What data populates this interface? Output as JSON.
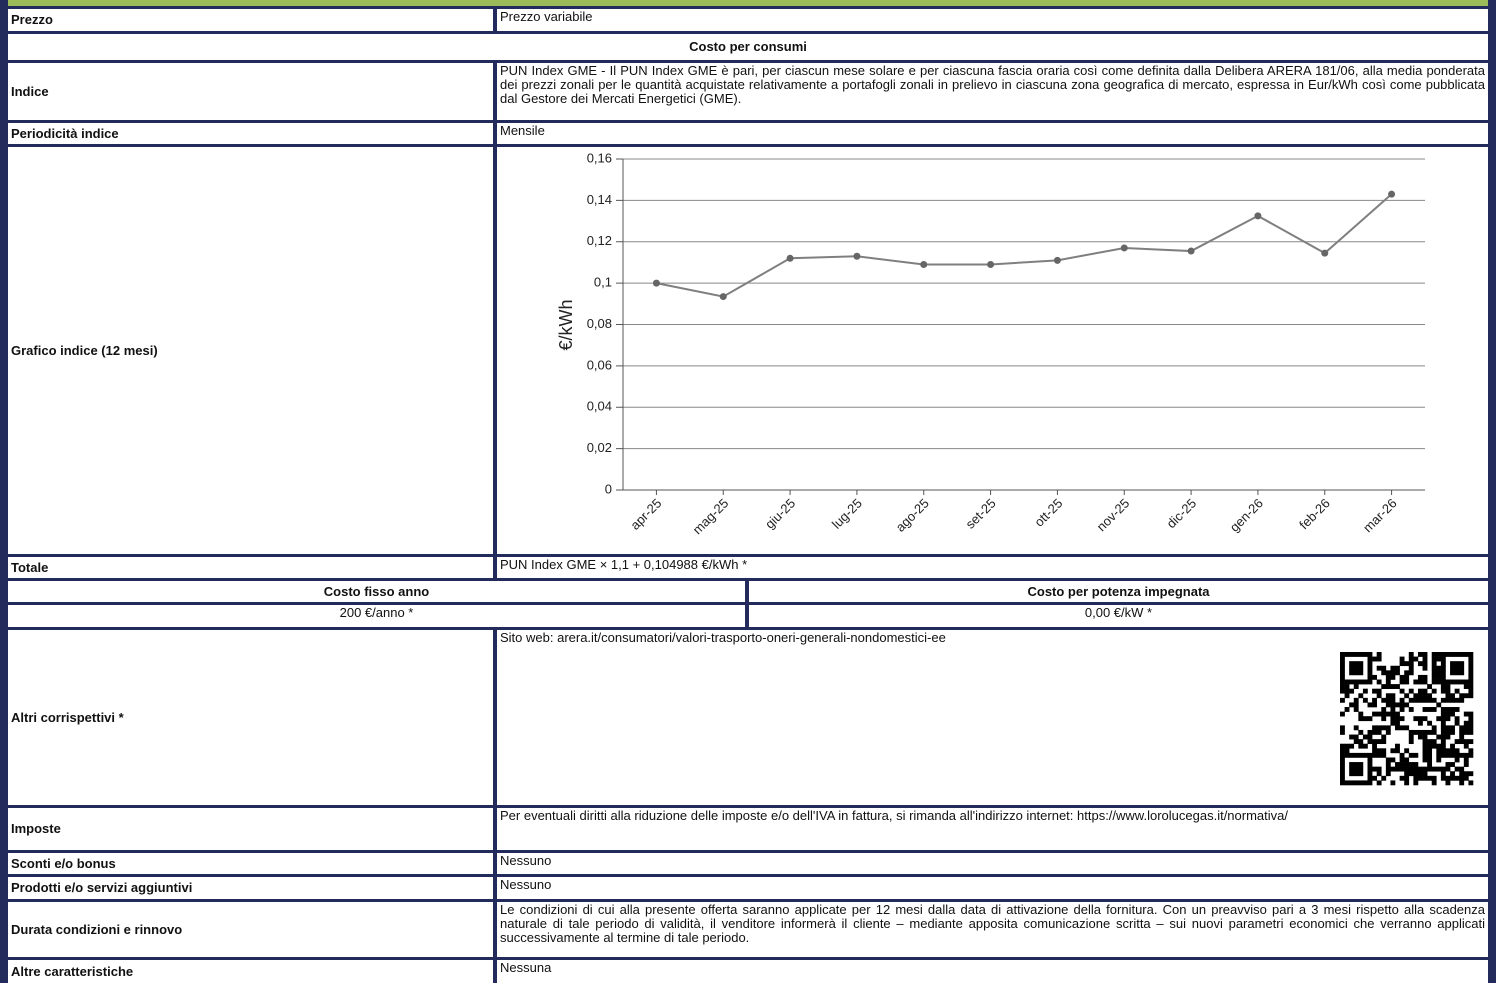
{
  "prezzo": {
    "label": "Prezzo",
    "value": "Prezzo variabile"
  },
  "section_title": "Costo per consumi",
  "indice": {
    "label": "Indice",
    "value": "PUN Index GME - Il PUN Index GME è pari, per ciascun mese solare e per ciascuna fascia oraria così come definita dalla Delibera ARERA 181/06, alla media ponderata dei prezzi zonali per le quantità acquistate relativamente a portafogli zonali in prelievo in ciascuna zona geografica di mercato, espressa in Eur/kWh così come pubblicata dal Gestore dei Mercati Energetici (GME)."
  },
  "periodicita": {
    "label": "Periodicità indice",
    "value": "Mensile"
  },
  "grafico_label": "Grafico indice (12 mesi)",
  "chart_data": {
    "type": "line",
    "y_label": "€/kWh",
    "categories": [
      "apr-25",
      "mag-25",
      "giu-25",
      "lug-25",
      "ago-25",
      "set-25",
      "ott-25",
      "nov-25",
      "dic-25",
      "gen-26",
      "feb-26",
      "mar-26"
    ],
    "values": [
      0.1,
      0.0935,
      0.112,
      0.113,
      0.109,
      0.109,
      0.111,
      0.117,
      0.1155,
      0.1325,
      0.1145,
      0.143
    ],
    "color": "#7f7f7f",
    "marker_color": "#666666",
    "ylim": [
      0,
      0.16
    ],
    "yticks": [
      0,
      {
        "value": 0.02,
        "label": "0,02"
      },
      {
        "value": 0.04,
        "label": "0,04"
      },
      {
        "value": 0.06,
        "label": "0,06"
      },
      {
        "value": 0.08,
        "label": "0,08"
      },
      {
        "value": 0.1,
        "label": "0,1"
      },
      {
        "value": 0.12,
        "label": "0,12"
      },
      {
        "value": 0.14,
        "label": "0,14"
      },
      {
        "value": 0.16,
        "label": "0,16"
      }
    ],
    "grid": true
  },
  "totale": {
    "label": "Totale",
    "value": "PUN Index GME × 1,1 + 0,104988 €/kWh *"
  },
  "costo_fisso": {
    "title": "Costo fisso anno",
    "value": "200 €/anno *"
  },
  "costo_potenza": {
    "title": "Costo per potenza impegnata",
    "value": "0,00 €/kW *"
  },
  "altri": {
    "label": "Altri corrispettivi *",
    "value": "Sito web: arera.it/consumatori/valori-trasporto-oneri-generali-nondomestici-ee"
  },
  "imposte": {
    "label": "Imposte",
    "value": "Per eventuali diritti alla riduzione delle imposte e/o dell'IVA in fattura, si rimanda all'indirizzo internet: https://www.lorolucegas.it/normativa/"
  },
  "sconti": {
    "label": "Sconti e/o bonus",
    "value": "Nessuno"
  },
  "prodotti": {
    "label": "Prodotti e/o servizi aggiuntivi",
    "value": "Nessuno"
  },
  "durata": {
    "label": "Durata condizioni e rinnovo",
    "value": "Le condizioni di cui alla presente offerta saranno applicate per 12 mesi dalla data di attivazione della fornitura. Con un preavviso pari a 3 mesi rispetto alla scadenza naturale di tale periodo di validità, il venditore informerà il cliente – mediante apposita comunicazione scritta – sui nuovi parametri economici che verranno applicati successivamente al termine di tale periodo."
  },
  "altre": {
    "label": "Altre caratteristiche",
    "value": "Nessuna"
  }
}
